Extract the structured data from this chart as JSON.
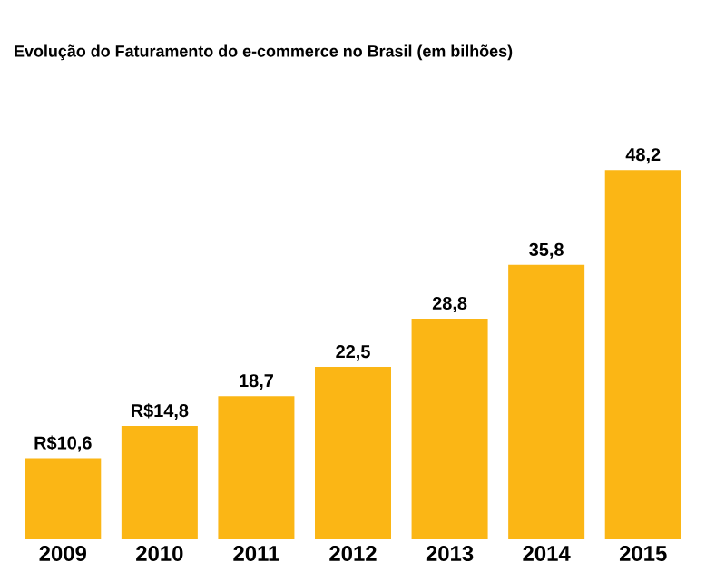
{
  "chart_data": {
    "type": "bar",
    "title": "Evolução do Faturamento do e-commerce no Brasil (em bilhões)",
    "categories": [
      "2009",
      "2010",
      "2011",
      "2012",
      "2013",
      "2014",
      "2015"
    ],
    "values": [
      10.6,
      14.8,
      18.7,
      22.5,
      28.8,
      35.8,
      48.2
    ],
    "value_labels": [
      "R$10,6",
      "R$14,8",
      "18,7",
      "22,5",
      "28,8",
      "35,8",
      "48,2"
    ],
    "color": "#fbb615"
  }
}
